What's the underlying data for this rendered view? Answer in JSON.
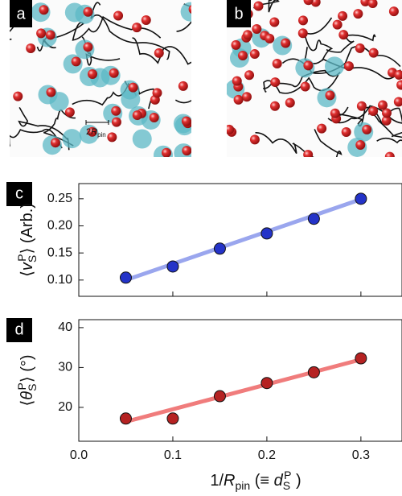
{
  "panels": [
    {
      "label": "a",
      "scale_bar": [
        "2",
        "R",
        "pin"
      ]
    },
    {
      "label": "b"
    }
  ],
  "chart_data": [
    {
      "type": "scatter",
      "panel_label": "c",
      "ylabel": [
        "⟨",
        "v",
        "S",
        "P",
        "⟩ (Arb.)"
      ],
      "xlim": [
        0,
        0.342
      ],
      "xticks": [
        0,
        0.1,
        0.2,
        0.3
      ],
      "show_xtick_labels": false,
      "ylim": [
        0.07,
        0.278
      ],
      "yticks": [
        {
          "value": 0.1,
          "label": "0.10"
        },
        {
          "value": 0.15,
          "label": "0.15"
        },
        {
          "value": 0.2,
          "label": "0.20"
        },
        {
          "value": 0.25,
          "label": "0.25"
        }
      ],
      "series": [
        {
          "mode": "line",
          "color": "#9aa6ee",
          "x": [
            0.05,
            0.3
          ],
          "values": [
            0.1,
            0.249
          ]
        },
        {
          "mode": "markers",
          "color": "#2433c8",
          "x": [
            0.05,
            0.1,
            0.15,
            0.2,
            0.25,
            0.3
          ],
          "values": [
            0.1045,
            0.125,
            0.158,
            0.186,
            0.213,
            0.25
          ]
        }
      ]
    },
    {
      "type": "scatter",
      "panel_label": "d",
      "ylabel": [
        "⟨",
        "θ",
        "S",
        "P",
        "⟩ (°)"
      ],
      "xlabel": [
        "1/",
        "R",
        "pin",
        " (≡ ",
        "d",
        "S",
        "P",
        " )"
      ],
      "xlim": [
        0,
        0.342
      ],
      "xticks": [
        {
          "value": 0,
          "label": "0.0"
        },
        0.1,
        0.2,
        0.3
      ],
      "show_xtick_labels": true,
      "ylim": [
        11.5,
        42
      ],
      "yticks": [
        20,
        30,
        40
      ],
      "series": [
        {
          "mode": "line",
          "color": "#f07c7c",
          "x": [
            0.05,
            0.3
          ],
          "values": [
            16.4,
            32
          ]
        },
        {
          "mode": "markers",
          "color": "#b52222",
          "x": [
            0.05,
            0.1,
            0.15,
            0.2,
            0.25,
            0.3
          ],
          "values": [
            17.2,
            17.2,
            22.8,
            26.1,
            28.8,
            32.3
          ]
        }
      ]
    }
  ]
}
